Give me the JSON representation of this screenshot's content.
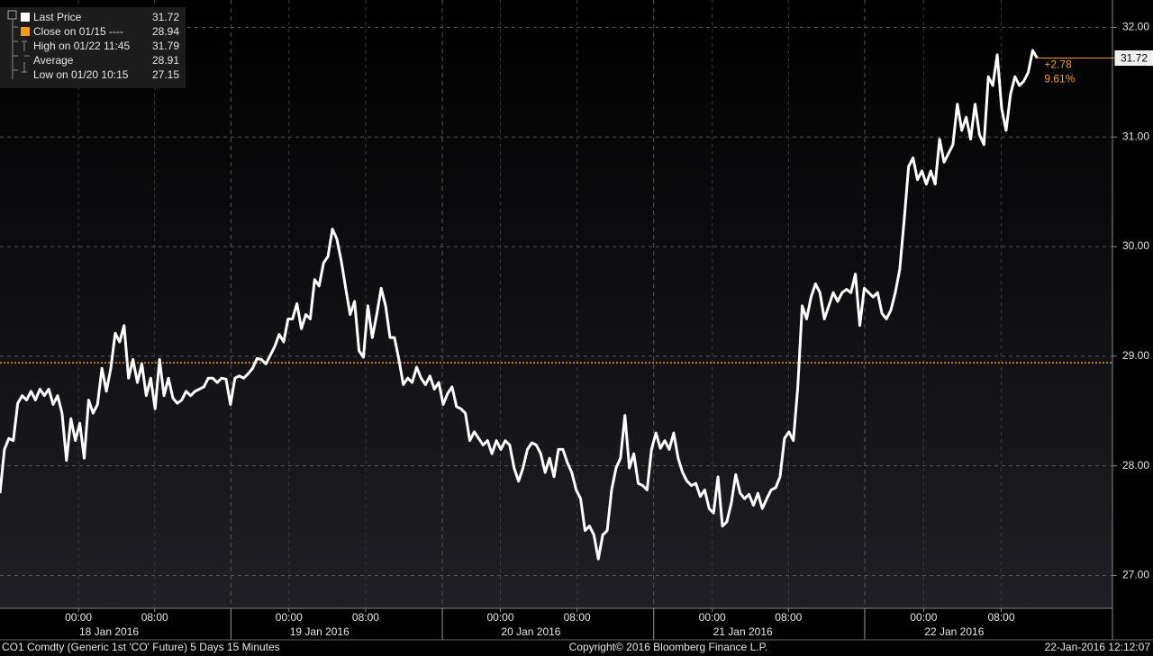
{
  "chart_data": {
    "type": "line",
    "series": [
      {
        "name": "Last Price",
        "color": "#ffffff",
        "values": [
          27.75,
          28.15,
          28.25,
          28.23,
          28.57,
          28.64,
          28.6,
          28.68,
          28.6,
          28.7,
          28.64,
          28.7,
          28.56,
          28.64,
          28.48,
          28.05,
          28.43,
          28.23,
          28.39,
          28.07,
          28.6,
          28.48,
          28.56,
          28.89,
          28.68,
          28.89,
          29.21,
          29.13,
          29.28,
          28.8,
          28.97,
          28.76,
          28.93,
          28.64,
          28.8,
          28.52,
          28.97,
          28.64,
          28.8,
          28.62,
          28.57,
          28.6,
          28.68,
          28.64,
          28.68,
          28.7,
          28.72,
          28.8,
          28.8,
          28.76,
          28.8,
          28.79,
          28.56,
          28.8,
          28.82,
          28.8,
          28.84,
          28.89,
          28.98,
          28.97,
          28.93,
          29.01,
          29.09,
          29.2,
          29.13,
          29.34,
          29.34,
          29.48,
          29.25,
          29.38,
          29.34,
          29.7,
          29.64,
          29.85,
          29.91,
          30.16,
          30.07,
          29.87,
          29.62,
          29.38,
          29.5,
          29.05,
          28.99,
          29.46,
          29.17,
          29.38,
          29.62,
          29.46,
          29.17,
          29.17,
          28.97,
          28.74,
          28.8,
          28.76,
          28.9,
          28.8,
          28.74,
          28.82,
          28.7,
          28.76,
          28.56,
          28.66,
          28.72,
          28.54,
          28.52,
          28.48,
          28.23,
          28.31,
          28.25,
          28.19,
          28.23,
          28.11,
          28.23,
          28.15,
          28.23,
          28.19,
          27.98,
          27.86,
          27.98,
          28.15,
          28.21,
          28.19,
          28.11,
          27.94,
          28.07,
          27.9,
          28.15,
          28.15,
          28.03,
          27.94,
          27.78,
          27.7,
          27.41,
          27.45,
          27.37,
          27.15,
          27.37,
          27.41,
          27.78,
          27.98,
          28.07,
          28.46,
          27.98,
          28.11,
          27.84,
          27.82,
          27.78,
          28.15,
          28.3,
          28.16,
          28.23,
          28.15,
          28.3,
          28.07,
          27.94,
          27.86,
          27.82,
          27.84,
          27.72,
          27.78,
          27.61,
          27.57,
          27.9,
          27.45,
          27.49,
          27.66,
          27.92,
          27.75,
          27.7,
          27.74,
          27.64,
          27.75,
          27.61,
          27.7,
          27.78,
          27.8,
          27.9,
          28.25,
          28.31,
          28.23,
          28.72,
          29.46,
          29.34,
          29.54,
          29.66,
          29.58,
          29.34,
          29.46,
          29.58,
          29.5,
          29.58,
          29.61,
          29.58,
          29.75,
          29.28,
          29.62,
          29.58,
          29.54,
          29.58,
          29.39,
          29.34,
          29.42,
          29.58,
          29.79,
          30.24,
          30.73,
          30.81,
          30.61,
          30.69,
          30.57,
          30.69,
          30.57,
          30.98,
          30.77,
          30.85,
          30.93,
          31.3,
          31.06,
          31.18,
          30.98,
          31.3,
          31.02,
          30.93,
          31.55,
          31.47,
          31.75,
          31.26,
          31.06,
          31.39,
          31.55,
          31.47,
          31.51,
          31.59,
          31.79,
          31.72
        ]
      }
    ],
    "reference_line": {
      "name": "Close on 01/15 ----",
      "value": 28.94,
      "color": "#f39c12"
    },
    "legend_stats": [
      {
        "name": "High on 01/22 11:45",
        "value": 31.79
      },
      {
        "name": "Average",
        "value": 28.91
      },
      {
        "name": "Low on 01/20 10:15",
        "value": 27.15
      }
    ],
    "change_label": "+2.78",
    "change_percent_label": "9.61%",
    "ylim": [
      26.7,
      32.25
    ],
    "yticks": [
      {
        "value": 27,
        "label": "27.00"
      },
      {
        "value": 28,
        "label": "28.00"
      },
      {
        "value": 29,
        "label": "29.00"
      },
      {
        "value": 30,
        "label": "30.00"
      },
      {
        "value": 31,
        "label": "31.00"
      },
      {
        "value": 32,
        "label": "32.00"
      }
    ],
    "xlim": [
      0,
      251
    ],
    "xticks": [
      {
        "value": 17.7,
        "label": "00:00"
      },
      {
        "value": 34.9,
        "label": "08:00"
      },
      {
        "value": 65.2,
        "label": "00:00"
      },
      {
        "value": 82.5,
        "label": "08:00"
      },
      {
        "value": 112.9,
        "label": "00:00"
      },
      {
        "value": 130.2,
        "label": "08:00"
      },
      {
        "value": 160.7,
        "label": "00:00"
      },
      {
        "value": 177.9,
        "label": "08:00"
      },
      {
        "value": 208.4,
        "label": "00:00"
      },
      {
        "value": 225.9,
        "label": "08:00"
      }
    ],
    "xdates": [
      {
        "value": 24.6,
        "label": "18 Jan 2016"
      },
      {
        "value": 72.1,
        "label": "19 Jan 2016"
      },
      {
        "value": 119.8,
        "label": "20 Jan 2016"
      },
      {
        "value": 167.6,
        "label": "21 Jan 2016"
      },
      {
        "value": 215.3,
        "label": "22 Jan 2016"
      }
    ],
    "grid": true,
    "footer": {
      "left": "CO1 Comdty (Generic 1st 'CO' Future) 5 Days 15 Minutes",
      "center": "Copyright© 2016 Bloomberg Finance L.P.",
      "right": "22-Jan-2016 12:12:07"
    }
  }
}
